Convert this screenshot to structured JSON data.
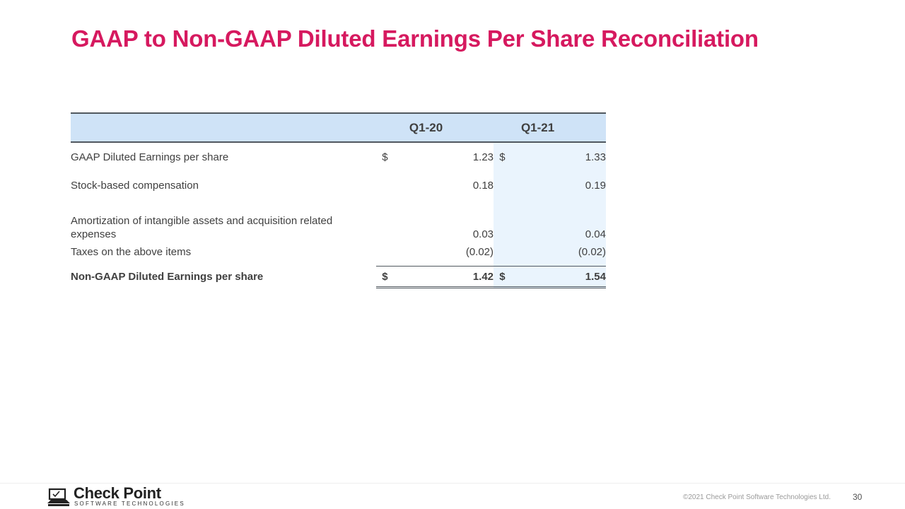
{
  "title": "GAAP to Non-GAAP Diluted Earnings Per Share Reconciliation",
  "table": {
    "headers": [
      "Q1-20",
      "Q1-21"
    ],
    "rows": [
      {
        "label": "GAAP Diluted Earnings per share",
        "cur1": "$",
        "v1": "1.23",
        "cur2": "$",
        "v2": "1.33"
      },
      {
        "label": "Stock-based compensation",
        "cur1": "",
        "v1": "0.18",
        "cur2": "",
        "v2": "0.19"
      },
      {
        "label_line1": "Amortization of intangible assets and acquisition related",
        "label_line2": "expenses",
        "cur1": "",
        "v1": "0.03",
        "cur2": "",
        "v2": "0.04"
      },
      {
        "label": "Taxes on the above items",
        "cur1": "",
        "v1": "(0.02)",
        "cur2": "",
        "v2": "(0.02)"
      },
      {
        "label": "Non-GAAP Diluted Earnings per share",
        "cur1": "$",
        "v1": "1.42",
        "cur2": "$",
        "v2": "1.54"
      }
    ]
  },
  "footer": {
    "logo_name": "Check Point",
    "logo_sub": "SOFTWARE TECHNOLOGIES",
    "copyright": "©2021 Check Point Software Technologies Ltd.",
    "page_number": "30"
  }
}
